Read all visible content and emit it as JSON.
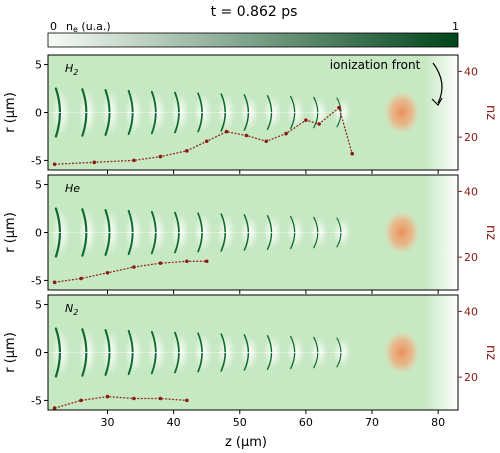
{
  "title": "t = 0.862 ps",
  "colorbar": {
    "min_label": "0",
    "label_main": "n",
    "label_sub": "e",
    "label_rest": " (u.a.)",
    "max_label": "1",
    "color_low": "#f7fcf5",
    "color_high": "#00441b"
  },
  "annotation": "ionization front",
  "colors": {
    "green_bg": "#c6e8c2",
    "green_dark": "#0b6a2c",
    "orange": "#f0a070",
    "red_axis": "#8b1a10"
  },
  "chart_data": {
    "type": "heatmap",
    "xlabel": "z (µm)",
    "ylabel": "r (µm)",
    "right_ylabel": "nz",
    "xlim": [
      21,
      83
    ],
    "ylim": [
      -6,
      6
    ],
    "right_ylim": [
      10,
      45
    ],
    "x_ticks": [
      30,
      40,
      50,
      60,
      70,
      80
    ],
    "y_ticks": [
      -5,
      0,
      5
    ],
    "right_ticks": [
      20,
      40
    ],
    "ionization_front_z": 80,
    "wake_centers_z": [
      22.5,
      26.5,
      30,
      33.5,
      37,
      40.5,
      44,
      47.5,
      51,
      54.5,
      58,
      61.5,
      65
    ],
    "laser_center_z": 74.5,
    "panels": [
      {
        "gas_main": "H",
        "gas_sub": "2",
        "particles": [
          [
            22,
            -5.4
          ],
          [
            28,
            -5.2
          ],
          [
            34,
            -5.0
          ],
          [
            38,
            -4.6
          ],
          [
            42,
            -4.0
          ],
          [
            45,
            -3.0
          ],
          [
            48,
            -2.0
          ],
          [
            51,
            -2.4
          ],
          [
            54,
            -3.0
          ],
          [
            57,
            -2.2
          ],
          [
            60,
            -0.8
          ],
          [
            62,
            -1.2
          ],
          [
            65,
            0.5
          ],
          [
            67,
            -4.3
          ]
        ]
      },
      {
        "gas_main": "He",
        "gas_sub": "",
        "particles": [
          [
            22,
            -5.2
          ],
          [
            26,
            -4.8
          ],
          [
            30,
            -4.2
          ],
          [
            34,
            -3.6
          ],
          [
            38,
            -3.2
          ],
          [
            42,
            -3.0
          ],
          [
            45,
            -3.0
          ]
        ]
      },
      {
        "gas_main": "N",
        "gas_sub": "2",
        "particles": [
          [
            22,
            -5.8
          ],
          [
            26,
            -5.0
          ],
          [
            30,
            -4.6
          ],
          [
            34,
            -4.8
          ],
          [
            38,
            -4.8
          ],
          [
            42,
            -5.0
          ]
        ]
      }
    ]
  }
}
